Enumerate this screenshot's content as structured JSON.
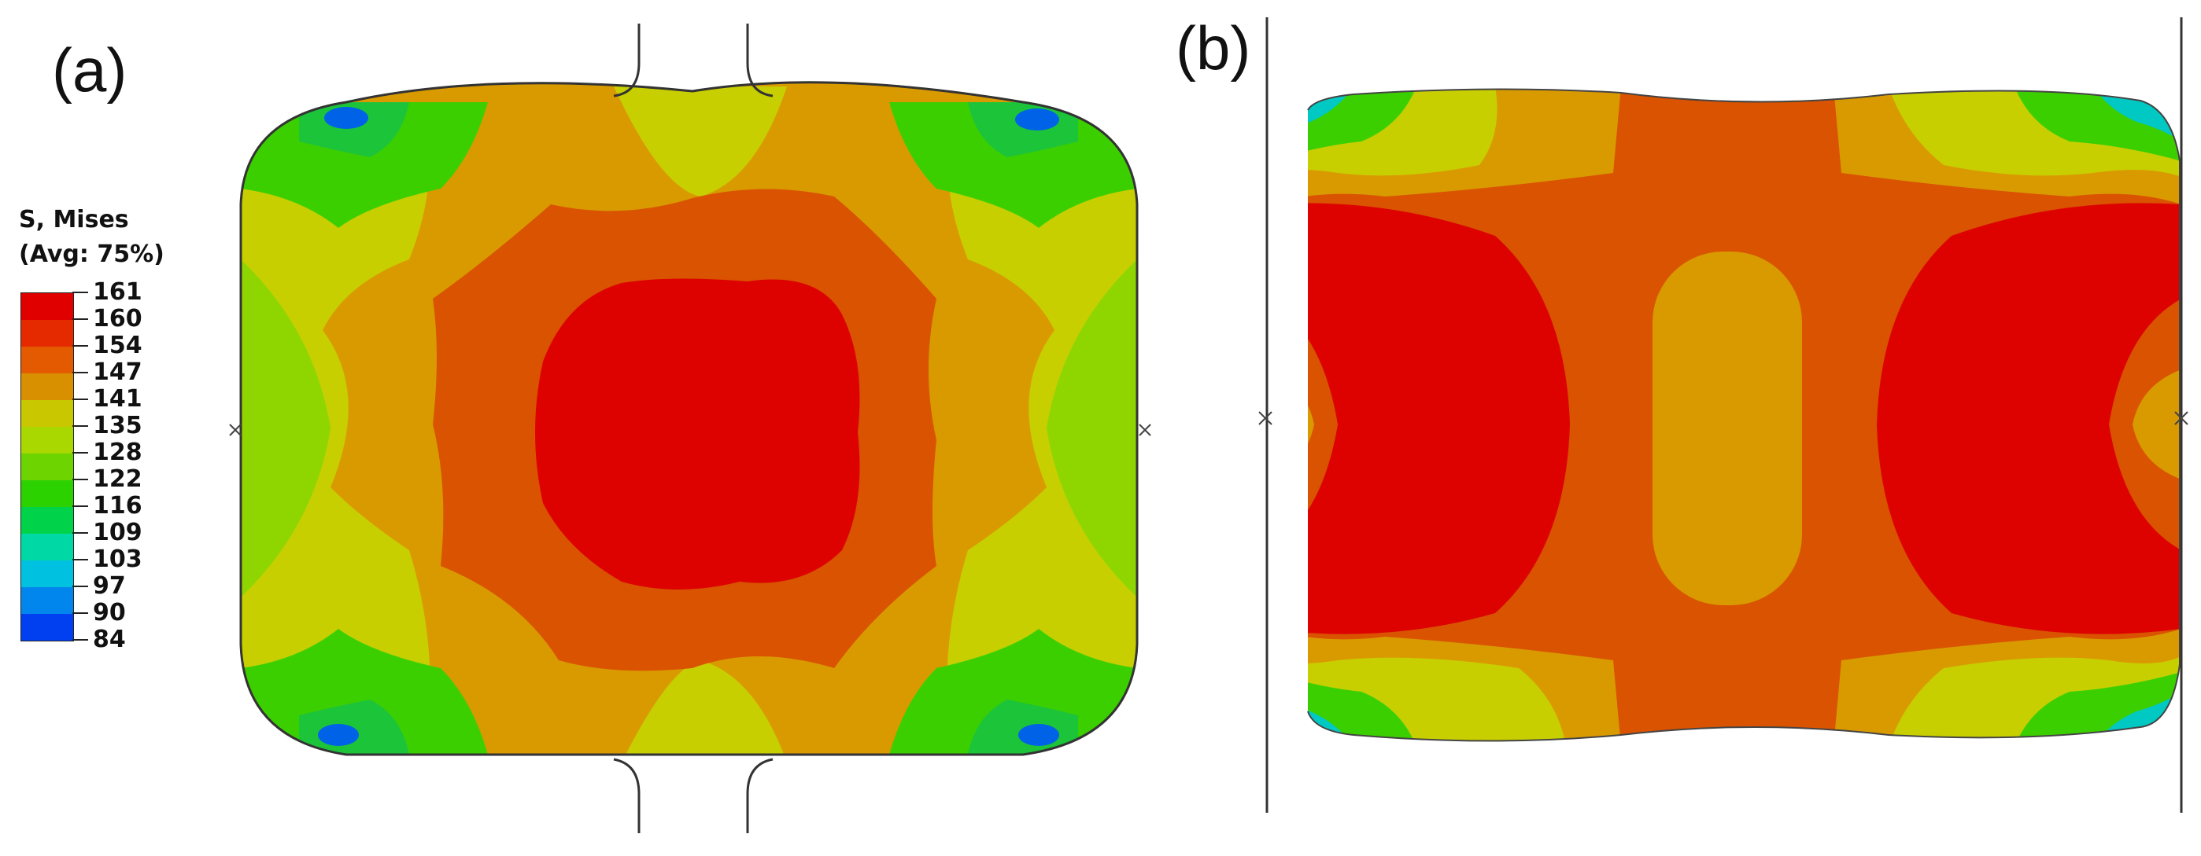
{
  "panels": {
    "a": {
      "label": "(a)"
    },
    "b": {
      "label": "(b)"
    }
  },
  "legend": {
    "title_line1": "S, Mises",
    "title_line2": "(Avg: 75%)",
    "values": [
      "161",
      "160",
      "154",
      "147",
      "141",
      "135",
      "128",
      "122",
      "116",
      "109",
      "103",
      "97",
      "90",
      "84"
    ],
    "colors": [
      "#e00000",
      "#e52a00",
      "#e35a00",
      "#d99000",
      "#c9c800",
      "#a8d800",
      "#6ed400",
      "#2cd200",
      "#00d24a",
      "#00d8a6",
      "#00c2e0",
      "#0086ec",
      "#0040f0",
      "#0000d8"
    ]
  },
  "colors": {
    "red": "#dd0200",
    "orange_red": "#d95300",
    "orange": "#d99a00",
    "yellow": "#c8cf00",
    "yellow_green": "#8fd600",
    "green": "#3ccf00",
    "green2": "#1cc43a",
    "cyan": "#00c9c3",
    "blue": "#0062e6",
    "dark_blue": "#0010c8"
  }
}
